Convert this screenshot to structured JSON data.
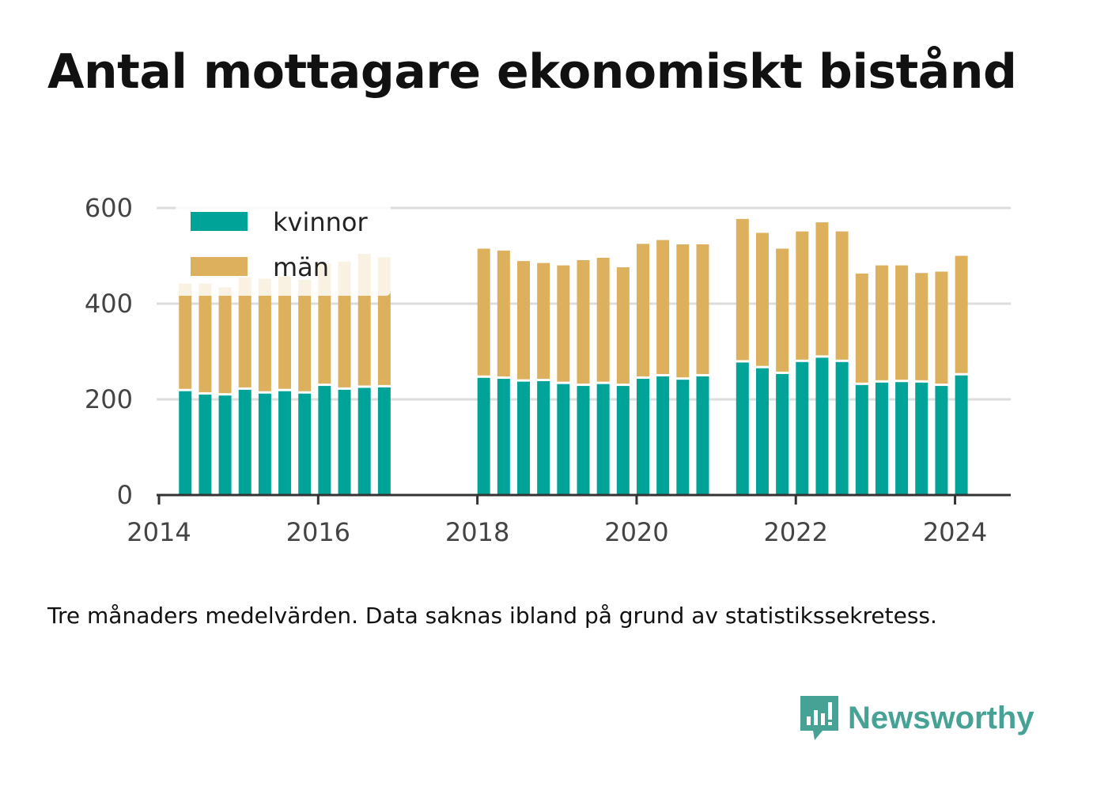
{
  "title": "Antal mottagare ekonomiskt bistånd",
  "note": "Tre månaders medelvärden. Data saknas ibland på grund av statistikssekretess.",
  "logo": {
    "text": "Newsworthy",
    "icon": "newsworthy-chart-bubble-icon",
    "color": "#47a296"
  },
  "colors": {
    "kvinnor": "#00a398",
    "man": "#ddb05e",
    "grid": "#dddddd",
    "axis": "#333333"
  },
  "chart_data": {
    "type": "bar",
    "stacked": true,
    "ylim": [
      0,
      600
    ],
    "yticks": [
      "0",
      "200",
      "400",
      "600"
    ],
    "xlim": [
      2013.97,
      2024.7
    ],
    "xticks": [
      2014,
      2016,
      2018,
      2020,
      2022,
      2024
    ],
    "grid": true,
    "legend_position": "top-left",
    "x": [
      2014.33,
      2014.58,
      2014.83,
      2015.08,
      2015.33,
      2015.58,
      2015.83,
      2016.08,
      2016.33,
      2016.58,
      2016.83,
      2018.08,
      2018.33,
      2018.58,
      2018.83,
      2019.08,
      2019.33,
      2019.58,
      2019.83,
      2020.08,
      2020.33,
      2020.58,
      2020.83,
      2021.33,
      2021.58,
      2021.83,
      2022.08,
      2022.33,
      2022.58,
      2022.83,
      2023.08,
      2023.33,
      2023.58,
      2023.83,
      2024.08
    ],
    "series": [
      {
        "name": "kvinnor",
        "values": [
          217,
          210,
          208,
          220,
          212,
          217,
          212,
          228,
          220,
          224,
          225,
          245,
          243,
          237,
          238,
          232,
          228,
          232,
          228,
          243,
          248,
          241,
          248,
          277,
          265,
          253,
          278,
          287,
          278,
          230,
          235,
          236,
          235,
          228,
          250
        ]
      },
      {
        "name": "män",
        "values": [
          225,
          232,
          226,
          235,
          240,
          240,
          238,
          256,
          268,
          280,
          272,
          270,
          268,
          252,
          247,
          248,
          263,
          264,
          248,
          282,
          285,
          283,
          276,
          300,
          283,
          262,
          273,
          283,
          273,
          233,
          245,
          244,
          229,
          239,
          250
        ]
      }
    ]
  }
}
